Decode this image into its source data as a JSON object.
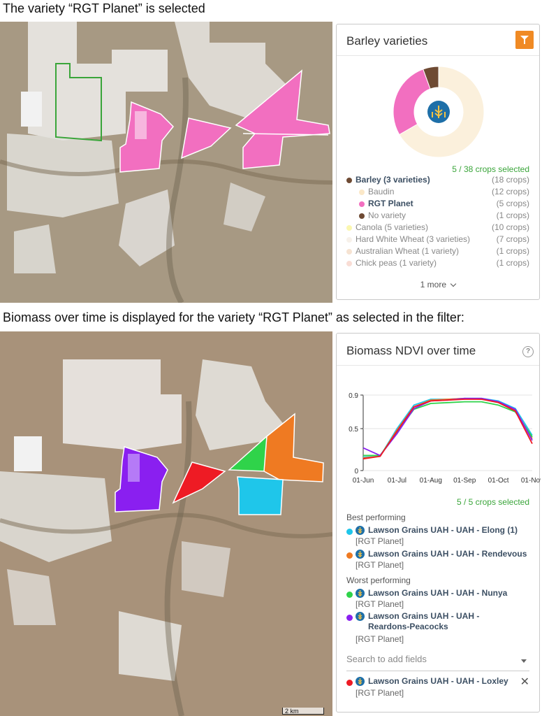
{
  "captions": {
    "top": "The variety “RGT Planet” is selected",
    "bottom": "Biomass over time is displayed for the variety “RGT Planet” as selected in the filter:"
  },
  "variety_panel": {
    "title": "Barley varieties",
    "filter_icon": "filter-icon",
    "center_icon": "wheat-icon",
    "donut": [
      {
        "label": "Baudin",
        "crops": 12,
        "color": "#fbf0dc"
      },
      {
        "label": "RGT Planet",
        "crops": 5,
        "color": "#f26fc0"
      },
      {
        "label": "No variety",
        "crops": 1,
        "color": "#6e4a33"
      }
    ],
    "selected_count": "5 / 38 crops selected",
    "legend": [
      {
        "label": "Barley (3 varieties)",
        "count": "(18 crops)",
        "color": "#6e4a33",
        "indent": false,
        "bold": true
      },
      {
        "label": "Baudin",
        "count": "(12 crops)",
        "color": "#fbe8c8",
        "indent": true,
        "bold": false
      },
      {
        "label": "RGT Planet",
        "count": "(5 crops)",
        "color": "#f26fc0",
        "indent": true,
        "bold": true
      },
      {
        "label": "No variety",
        "count": "(1 crops)",
        "color": "#6e4a33",
        "indent": true,
        "bold": false
      },
      {
        "label": "Canola (5 varieties)",
        "count": "(10 crops)",
        "color": "#fbf7b0",
        "indent": false,
        "bold": false
      },
      {
        "label": "Hard White Wheat (3 varieties)",
        "count": "(7 crops)",
        "color": "#f7f1ea",
        "indent": false,
        "bold": false
      },
      {
        "label": "Australian Wheat (1 variety)",
        "count": "(1 crops)",
        "color": "#f6e3d2",
        "indent": false,
        "bold": false
      },
      {
        "label": "Chick peas (1 variety)",
        "count": "(1 crops)",
        "color": "#f9ddd5",
        "indent": false,
        "bold": false
      }
    ],
    "more_label": "1 more"
  },
  "biomass_panel": {
    "title": "Biomass NDVI over time",
    "help_icon": "?",
    "selected_count": "5 / 5 crops selected",
    "best_label": "Best performing",
    "worst_label": "Worst performing",
    "best": [
      {
        "name": "Lawson Grains UAH - UAH - Elong (1)",
        "variety": "[RGT Planet]",
        "color": "#1fc6ea"
      },
      {
        "name": "Lawson Grains UAH - UAH - Rendevous",
        "variety": "[RGT Planet]",
        "color": "#ef7a22"
      }
    ],
    "worst": [
      {
        "name": "Lawson Grains UAH - UAH - Nunya",
        "variety": "[RGT Planet]",
        "color": "#2fd34a"
      },
      {
        "name": "Lawson Grains UAH - UAH - Reardons-Peacocks",
        "variety": "[RGT Planet]",
        "color": "#8a1ff0"
      }
    ],
    "search_placeholder": "Search to add fields",
    "added": [
      {
        "name": "Lawson Grains UAH - UAH - Loxley",
        "variety": "[RGT Planet]",
        "color": "#ee1b24"
      }
    ]
  },
  "chart_data": {
    "type": "line",
    "title": "",
    "xlabel": "",
    "ylabel": "",
    "x": [
      "01-Jun",
      "15-Jun",
      "01-Jul",
      "15-Jul",
      "01-Aug",
      "15-Aug",
      "01-Sep",
      "15-Sep",
      "01-Oct",
      "15-Oct",
      "01-Nov"
    ],
    "ylim": [
      0,
      0.9
    ],
    "yticks": [
      0,
      0.5,
      0.9
    ],
    "xticks": [
      "01-Jun",
      "01-Jul",
      "01-Aug",
      "01-Sep",
      "01-Oct",
      "01-Nov"
    ],
    "series": [
      {
        "color": "#1fc6ea",
        "values": [
          0.16,
          0.17,
          0.5,
          0.78,
          0.85,
          0.85,
          0.86,
          0.86,
          0.83,
          0.74,
          0.42
        ]
      },
      {
        "color": "#ef7a22",
        "values": [
          0.15,
          0.17,
          0.48,
          0.76,
          0.84,
          0.85,
          0.86,
          0.85,
          0.82,
          0.72,
          0.38
        ]
      },
      {
        "color": "#2fd34a",
        "values": [
          0.18,
          0.18,
          0.46,
          0.73,
          0.8,
          0.81,
          0.82,
          0.82,
          0.78,
          0.7,
          0.4
        ]
      },
      {
        "color": "#8a1ff0",
        "values": [
          0.27,
          0.18,
          0.44,
          0.74,
          0.83,
          0.84,
          0.86,
          0.86,
          0.82,
          0.73,
          0.36
        ]
      },
      {
        "color": "#ee1b24",
        "values": [
          0.14,
          0.17,
          0.47,
          0.76,
          0.83,
          0.84,
          0.85,
          0.85,
          0.81,
          0.71,
          0.32
        ]
      }
    ]
  },
  "map": {
    "scale_label": "2 km"
  }
}
